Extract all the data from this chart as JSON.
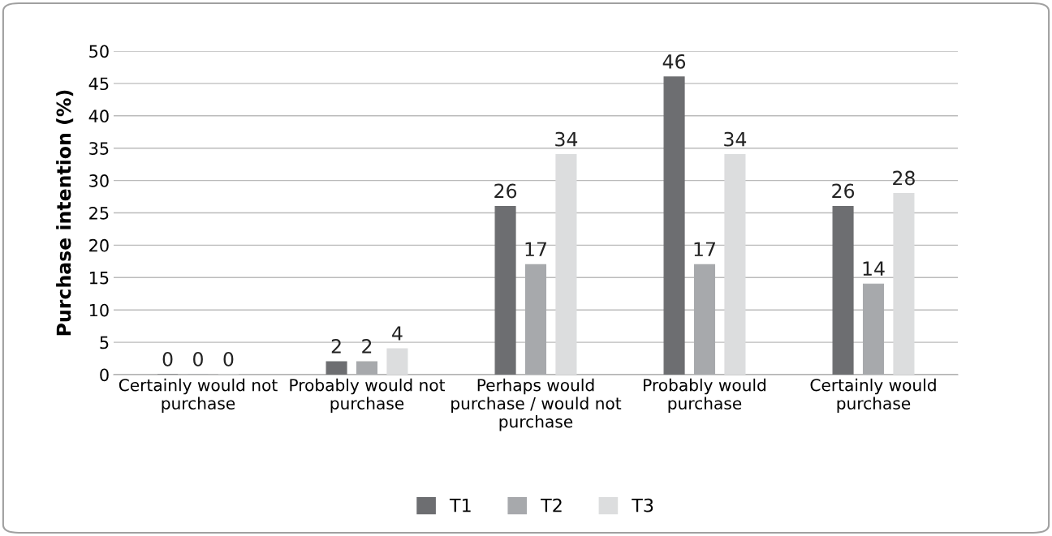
{
  "chart_data": {
    "type": "bar",
    "ylabel": "Purchase intention (%)",
    "categories": [
      "Certainly would not purchase",
      "Probably would not purchase",
      "Perhaps would purchase / would not purchase",
      "Probably would purchase",
      "Certainly would purchase"
    ],
    "series": [
      {
        "name": "T1",
        "color": "#6d6e71",
        "values": [
          0,
          2,
          26,
          46,
          26
        ]
      },
      {
        "name": "T2",
        "color": "#a7a9ac",
        "values": [
          0,
          2,
          17,
          17,
          14
        ]
      },
      {
        "name": "T3",
        "color": "#dcddde",
        "values": [
          0,
          4,
          34,
          34,
          28
        ]
      }
    ],
    "ylim": [
      0,
      50
    ],
    "yticks": [
      0,
      5,
      10,
      15,
      20,
      25,
      30,
      35,
      40,
      45,
      50
    ],
    "grid": "y",
    "legend": "bottom",
    "data_labels": true
  }
}
